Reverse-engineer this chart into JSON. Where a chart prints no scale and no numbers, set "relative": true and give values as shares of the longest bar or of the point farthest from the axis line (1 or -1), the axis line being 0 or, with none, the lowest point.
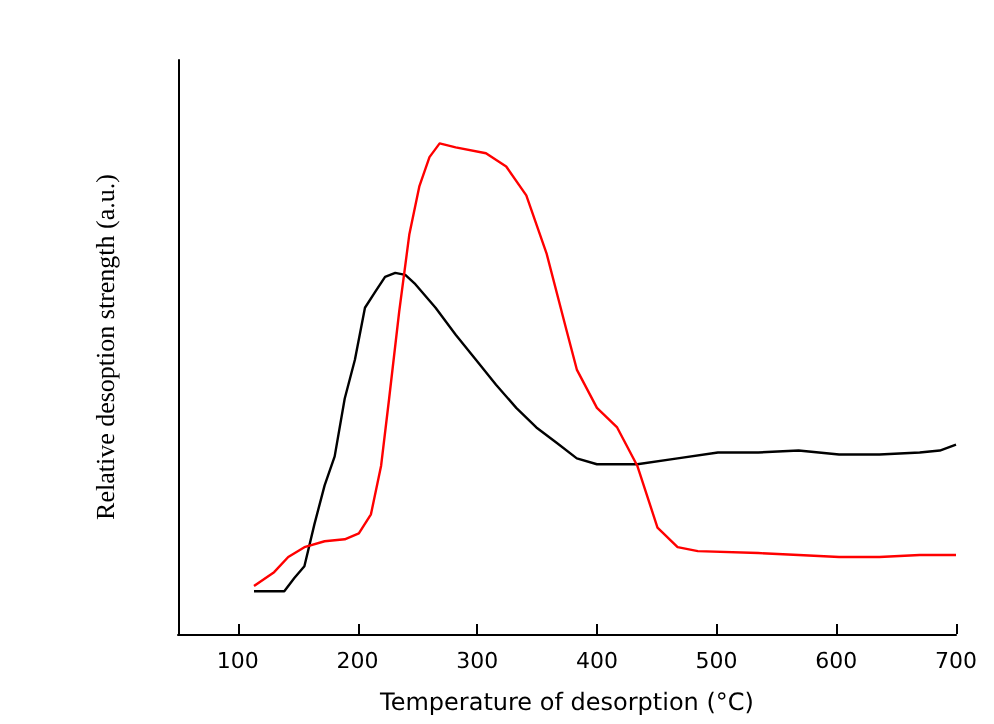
{
  "chart_data": {
    "type": "line",
    "relative": true,
    "xlabel": "Temperature of desorption (°C)",
    "ylabel": "Relative desoption strength (a.u.)",
    "xlim": [
      50,
      700
    ],
    "xticks": [
      100,
      200,
      300,
      400,
      500,
      600,
      700
    ],
    "marker": "none",
    "series": [
      {
        "color": "#000000",
        "x": [
          113.5,
          125.3,
          138.8,
          147.2,
          155.6,
          164,
          172.5,
          180.9,
          189.3,
          197.8,
          206.2,
          214.6,
          223,
          231.5,
          239.9,
          248.3,
          265.2,
          282,
          298.9,
          315.7,
          332.6,
          349.4,
          366.3,
          383.2,
          400,
          433.7,
          467.4,
          501.1,
          534.8,
          568.5,
          602.3,
          636,
          669.7,
          686.5,
          700
        ],
        "values": [
          0.087,
          0.087,
          0.087,
          0.114,
          0.138,
          0.224,
          0.303,
          0.362,
          0.48,
          0.559,
          0.665,
          0.697,
          0.728,
          0.736,
          0.732,
          0.713,
          0.665,
          0.61,
          0.559,
          0.508,
          0.461,
          0.421,
          0.39,
          0.358,
          0.346,
          0.346,
          0.358,
          0.37,
          0.37,
          0.374,
          0.366,
          0.366,
          0.37,
          0.374,
          0.386
        ]
      },
      {
        "color": "#ff0000",
        "x": [
          113.5,
          130.3,
          142.1,
          155.6,
          172.5,
          189.3,
          201.1,
          211.2,
          219.7,
          226.4,
          234.8,
          243.3,
          251.7,
          260.1,
          268.6,
          282,
          307.3,
          324.2,
          341,
          357.9,
          374.7,
          383.2,
          400,
          416.9,
          433.7,
          450.6,
          467.4,
          484.3,
          534.8,
          568.5,
          602.3,
          636,
          669.7,
          700
        ],
        "values": [
          0.098,
          0.126,
          0.157,
          0.177,
          0.189,
          0.193,
          0.205,
          0.244,
          0.343,
          0.48,
          0.657,
          0.815,
          0.913,
          0.972,
          1,
          0.992,
          0.98,
          0.953,
          0.894,
          0.776,
          0.618,
          0.539,
          0.461,
          0.421,
          0.343,
          0.217,
          0.177,
          0.169,
          0.165,
          0.161,
          0.157,
          0.157,
          0.161,
          0.161
        ]
      }
    ]
  }
}
